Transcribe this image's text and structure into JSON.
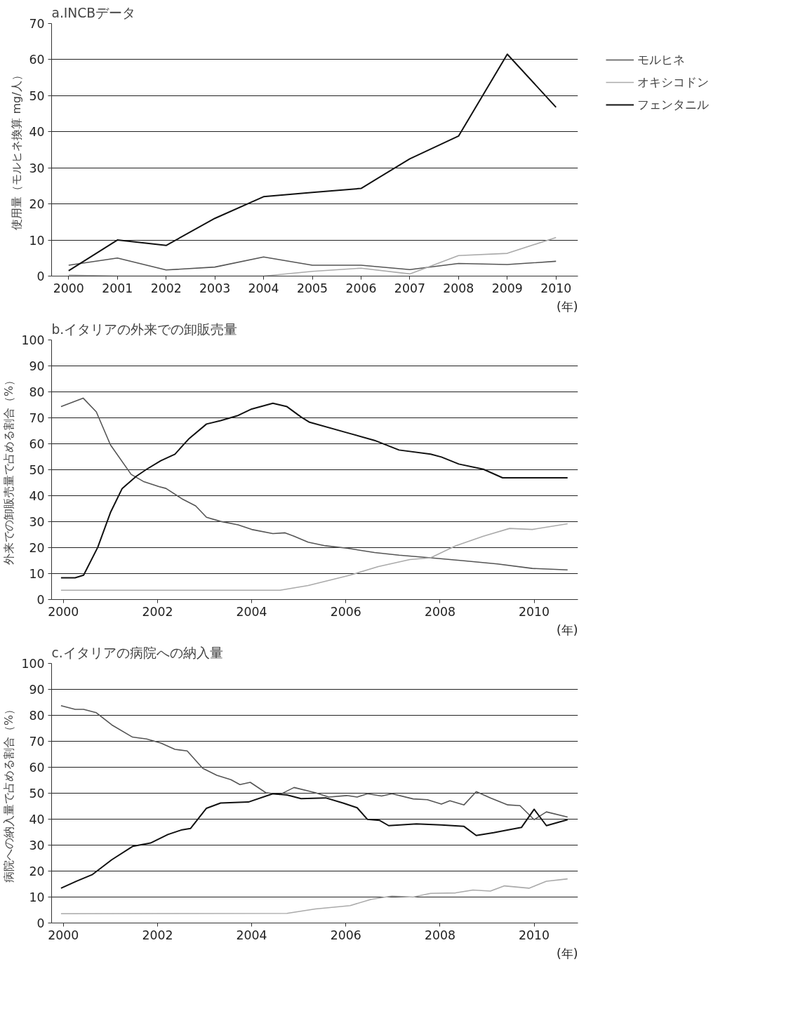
{
  "chart_data": [
    {
      "type": "line",
      "title": "a.INCBデータ",
      "ylabel": "使用量（モルヒネ換算 mg/人）",
      "xlabel": "(年)",
      "categories": [
        "2000",
        "2001",
        "2002",
        "2003",
        "2004",
        "2005",
        "2006",
        "2007",
        "2008",
        "2009",
        "2010"
      ],
      "series": [
        {
          "name": "モルヒネ",
          "color": "#555555",
          "values": [
            3,
            5,
            1.7,
            2.5,
            5.3,
            3,
            3,
            1.8,
            3.5,
            3.2,
            4.1
          ]
        },
        {
          "name": "オキシコドン",
          "color": "#aaaaaa",
          "values": [
            0.3,
            0,
            0,
            0,
            0,
            1.3,
            2.2,
            0.6,
            5.7,
            6.3,
            10.7
          ]
        },
        {
          "name": "フェンタニル",
          "color": "#111111",
          "values": [
            1.5,
            10,
            8.5,
            16,
            22,
            23.2,
            24.3,
            32.5,
            38.8,
            61.5,
            46.8
          ]
        }
      ],
      "ylim": [
        0,
        70
      ],
      "yticks": [
        0,
        10,
        20,
        30,
        40,
        50,
        60,
        70
      ],
      "grid": "y",
      "legend": "right",
      "line_style": "solid"
    },
    {
      "type": "line",
      "title": "b.イタリアの外来での卸販売量",
      "ylabel": "外来での卸販売量で占める割合（%）",
      "xlabel": "(年)",
      "series": [
        {
          "color": "#555555",
          "x": [
            1999.95,
            2000.42,
            2000.7,
            2001.0,
            2001.44,
            2001.7,
            2002.03,
            2002.18,
            2002.52,
            2002.81,
            2003.04,
            2003.34,
            2003.71,
            2004.0,
            2004.45,
            2004.71,
            2004.9,
            2005.2,
            2005.57,
            2006.02,
            2006.61,
            2007.13,
            2007.8,
            2008.47,
            2009.22,
            2009.96,
            2010.71
          ],
          "values": [
            74.3,
            77.6,
            72.3,
            59.6,
            48.2,
            45.5,
            43.5,
            42.8,
            38.8,
            36.1,
            31.7,
            30.1,
            28.8,
            27,
            25.4,
            25.7,
            24.4,
            22.1,
            20.7,
            19.8,
            18.1,
            17.1,
            16.1,
            15,
            13.7,
            12,
            11.4
          ]
        },
        {
          "color": "#aaaaaa",
          "x": [
            1999.95,
            2004.6,
            2005.2,
            2006.09,
            2006.69,
            2007.36,
            2007.8,
            2008.33,
            2008.92,
            2009.48,
            2009.96,
            2010.71
          ],
          "values": [
            3.6,
            3.6,
            5.4,
            9.4,
            12.7,
            15.4,
            16.1,
            20.7,
            24.4,
            27.4,
            27,
            29.2
          ]
        },
        {
          "color": "#111111",
          "x": [
            1999.95,
            2000.25,
            2000.43,
            2000.73,
            2001.0,
            2001.25,
            2001.55,
            2001.77,
            2002.07,
            2002.37,
            2002.66,
            2003.04,
            2003.34,
            2003.71,
            2004.0,
            2004.45,
            2004.75,
            2005.05,
            2005.23,
            2006.02,
            2006.61,
            2007.13,
            2007.8,
            2008.03,
            2008.4,
            2008.92,
            2009.33,
            2010.71
          ],
          "values": [
            8.4,
            8.4,
            9.4,
            20.1,
            33.5,
            42.8,
            47.5,
            50.2,
            53.5,
            56,
            61.8,
            67.6,
            68.9,
            70.9,
            73.4,
            75.6,
            74.3,
            70.3,
            68.3,
            64.3,
            61.3,
            57.6,
            56,
            54.9,
            52.2,
            50.2,
            46.9,
            46.9
          ]
        }
      ],
      "xlim": [
        1999.75,
        2010.93
      ],
      "xticks": [
        2000,
        2002,
        2004,
        2006,
        2008,
        2010
      ],
      "ylim": [
        0,
        100
      ],
      "yticks": [
        0,
        10,
        20,
        30,
        40,
        50,
        60,
        70,
        80,
        90,
        100
      ],
      "grid": "y",
      "line_style": "solid"
    },
    {
      "type": "line",
      "title": "c.イタリアの病院への納入量",
      "ylabel": "病院への納入量で占める割合（%）",
      "xlabel": "(年)",
      "series": [
        {
          "color": "#555555",
          "x": [
            1999.95,
            2000.25,
            2000.43,
            2000.7,
            2001.03,
            2001.47,
            2001.77,
            2002.07,
            2002.37,
            2002.63,
            2002.96,
            2003.26,
            2003.56,
            2003.75,
            2003.97,
            2004.3,
            2004.6,
            2004.9,
            2005.35,
            2005.64,
            2006.02,
            2006.24,
            2006.46,
            2006.76,
            2006.98,
            2007.43,
            2007.73,
            2008.03,
            2008.21,
            2008.51,
            2008.77,
            2009.07,
            2009.44,
            2009.7,
            2010.0,
            2010.26,
            2010.71
          ],
          "values": [
            83.7,
            82.3,
            82.3,
            81,
            76.3,
            71.6,
            70.9,
            69.3,
            66.9,
            66.3,
            59.6,
            56.9,
            55.2,
            53.3,
            54.2,
            50.2,
            49.5,
            52.2,
            50.2,
            48.5,
            49.1,
            48.5,
            49.8,
            48.9,
            49.8,
            47.8,
            47.5,
            45.8,
            47.1,
            45.5,
            50.6,
            48.2,
            45.5,
            45.2,
            39.8,
            42.8,
            40.8
          ]
        },
        {
          "color": "#aaaaaa",
          "x": [
            1999.95,
            2004.75,
            2005.35,
            2006.09,
            2006.54,
            2006.98,
            2007.43,
            2007.8,
            2008.33,
            2008.7,
            2009.07,
            2009.37,
            2009.89,
            2010.26,
            2010.71
          ],
          "values": [
            3.6,
            3.7,
            5.4,
            6.7,
            9.1,
            10.4,
            10,
            11.4,
            11.6,
            12.7,
            12.3,
            14.3,
            13.4,
            16.1,
            17
          ]
        },
        {
          "color": "#111111",
          "x": [
            1999.95,
            2000.28,
            2000.62,
            2001.03,
            2001.47,
            2001.85,
            2002.22,
            2002.52,
            2002.7,
            2003.04,
            2003.34,
            2003.93,
            2004.45,
            2004.75,
            2005.05,
            2005.57,
            2005.94,
            2006.24,
            2006.46,
            2006.72,
            2006.91,
            2007.5,
            2008.03,
            2008.51,
            2008.77,
            2009.14,
            2009.51,
            2009.73,
            2010.0,
            2010.26,
            2010.71
          ],
          "values": [
            13.4,
            16.1,
            18.7,
            24.4,
            29.5,
            30.8,
            34.1,
            35.9,
            36.4,
            44.2,
            46.2,
            46.6,
            49.8,
            49.3,
            47.9,
            48.2,
            46.2,
            44.4,
            39.9,
            39.5,
            37.5,
            38.2,
            37.8,
            37.2,
            33.7,
            34.8,
            36.1,
            36.8,
            43.8,
            37.5,
            39.8
          ]
        }
      ],
      "xlim": [
        1999.75,
        2010.93
      ],
      "xticks": [
        2000,
        2002,
        2004,
        2006,
        2008,
        2010
      ],
      "ylim": [
        0,
        100
      ],
      "yticks": [
        0,
        10,
        20,
        30,
        40,
        50,
        60,
        70,
        80,
        90,
        100
      ],
      "grid": "y",
      "line_style": "solid"
    }
  ]
}
